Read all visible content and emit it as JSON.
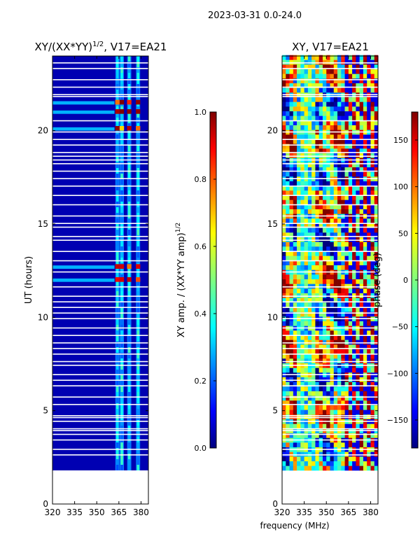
{
  "suptitle": "2023-03-31 0.0-24.0",
  "colormap": [
    "#00007f",
    "#0000ff",
    "#007fff",
    "#00ffff",
    "#7fff7f",
    "#ffff00",
    "#ff7f00",
    "#ff0000",
    "#7f0000"
  ],
  "chart_data": [
    {
      "type": "heatmap",
      "title": "XY/(XX*YY)",
      "title_power": "1/2",
      "title_suffix": ", V17=EA21",
      "xlabel": "",
      "ylabel": "UT (hours)",
      "xlim": [
        320,
        385
      ],
      "ylim": [
        0,
        24
      ],
      "xticks": [
        320,
        335,
        350,
        365,
        380
      ],
      "yticks": [
        0,
        5,
        10,
        15,
        20
      ],
      "data_start_hour": 1.8,
      "colorbar": {
        "label": "XY amp. / (XX*YY amp)",
        "label_power": "1/2",
        "range": [
          0.0,
          1.0
        ],
        "ticks": [
          "0.0",
          "0.2",
          "0.4",
          "0.6",
          "0.8",
          "1.0"
        ]
      },
      "bright_channels_mhz": [
        364,
        367,
        372,
        378
      ],
      "high_amplitude_hours": [
        11.9,
        12.6,
        20.0,
        20.9,
        21.4
      ]
    },
    {
      "type": "heatmap",
      "title": "XY, V17=EA21",
      "xlabel": "frequency (MHz)",
      "ylabel": "",
      "xlim": [
        320,
        385
      ],
      "ylim": [
        0,
        24
      ],
      "xticks": [
        320,
        335,
        350,
        365,
        380
      ],
      "yticks": [
        0,
        5,
        10,
        15,
        20
      ],
      "data_start_hour": 1.8,
      "colorbar": {
        "label": "phase (deg)",
        "range": [
          -180,
          180
        ],
        "ticks": [
          "−150",
          "−100",
          "−50",
          "0",
          "50",
          "100",
          "150"
        ]
      }
    }
  ]
}
